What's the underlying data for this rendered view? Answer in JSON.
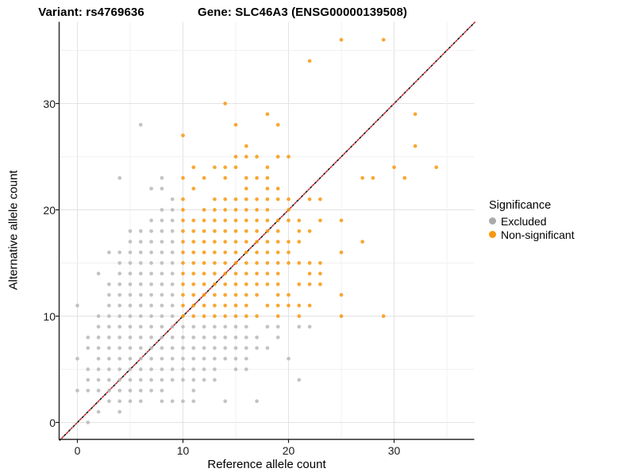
{
  "titles": {
    "left": "Variant: rs4769636",
    "right": "Gene: SLC46A3 (ENSG00000139508)"
  },
  "chart_data": {
    "type": "scatter",
    "xlabel": "Reference allele count",
    "ylabel": "Alternative allele count",
    "xlim": [
      -1.7,
      37.7
    ],
    "ylim": [
      -1.6,
      37.7
    ],
    "xticks": [
      0,
      10,
      20,
      30
    ],
    "yticks": [
      0,
      10,
      20,
      30
    ],
    "gridline_step": 5,
    "grid_major_color": "#e3e3e3",
    "grid_minor_color": "#f1f1f1",
    "axis_line_color": "#1a1a1a",
    "diagonal_line": {
      "style": "dashed",
      "equation": "y = x",
      "color_a": "#d7262e",
      "color_b": "#1c1c1c"
    },
    "point_colors": {
      "excluded": "#b9b9b9",
      "nonsig": "#f9970e"
    },
    "legend": {
      "title": "Significance",
      "items": [
        {
          "key": "excluded",
          "label": "Excluded",
          "color": "#aaaaaa"
        },
        {
          "key": "nonsig",
          "label": "Non-significant",
          "color": "#f9960f"
        }
      ],
      "position": "right"
    },
    "points_by_row": [
      {
        "y": 0,
        "excluded": [
          1
        ],
        "nonsig": []
      },
      {
        "y": 1,
        "excluded": [
          2,
          4
        ],
        "nonsig": []
      },
      {
        "y": 2,
        "excluded": [
          3,
          4,
          5,
          6,
          8,
          9,
          10,
          11,
          14,
          17
        ],
        "nonsig": []
      },
      {
        "y": 3,
        "excluded": [
          0,
          1,
          2,
          3,
          4,
          5,
          6,
          7,
          8,
          11
        ],
        "nonsig": []
      },
      {
        "y": 4,
        "excluded": [
          1,
          2,
          3,
          4,
          5,
          6,
          7,
          8,
          9,
          10,
          11,
          12,
          13,
          21
        ],
        "nonsig": []
      },
      {
        "y": 5,
        "excluded": [
          1,
          2,
          3,
          4,
          5,
          6,
          7,
          8,
          9,
          10,
          11,
          12,
          13,
          15,
          16
        ],
        "nonsig": []
      },
      {
        "y": 6,
        "excluded": [
          0,
          2,
          3,
          4,
          5,
          6,
          7,
          8,
          9,
          10,
          11,
          12,
          13,
          14,
          15,
          16,
          20
        ],
        "nonsig": []
      },
      {
        "y": 7,
        "excluded": [
          1,
          2,
          3,
          4,
          5,
          6,
          7,
          8,
          9,
          10,
          11,
          12,
          13,
          14,
          15,
          16,
          17,
          18
        ],
        "nonsig": []
      },
      {
        "y": 8,
        "excluded": [
          1,
          2,
          3,
          4,
          5,
          6,
          7,
          8,
          9,
          10,
          11,
          12,
          13,
          14,
          15,
          16,
          17,
          19
        ],
        "nonsig": []
      },
      {
        "y": 9,
        "excluded": [
          2,
          3,
          4,
          5,
          6,
          7,
          8,
          9,
          10,
          11,
          12,
          13,
          14,
          15,
          16,
          18,
          19,
          21,
          22
        ],
        "nonsig": []
      },
      {
        "y": 10,
        "excluded": [
          2,
          3,
          4,
          5,
          6,
          7,
          8,
          9
        ],
        "nonsig": [
          10,
          11,
          12,
          13,
          14,
          15,
          16,
          17,
          19,
          21,
          25,
          29
        ]
      },
      {
        "y": 11,
        "excluded": [
          0,
          3,
          4,
          5,
          6,
          7,
          8,
          9
        ],
        "nonsig": [
          10,
          11,
          12,
          13,
          14,
          15,
          16,
          18,
          19,
          20,
          21,
          22
        ]
      },
      {
        "y": 12,
        "excluded": [
          3,
          4,
          5,
          6,
          7,
          8,
          9
        ],
        "nonsig": [
          10,
          11,
          12,
          13,
          14,
          15,
          16,
          17,
          19,
          20,
          25
        ]
      },
      {
        "y": 13,
        "excluded": [
          3,
          4,
          5,
          6,
          7,
          8,
          9
        ],
        "nonsig": [
          10,
          11,
          12,
          13,
          14,
          15,
          16,
          17,
          18,
          19,
          21,
          22,
          23
        ]
      },
      {
        "y": 14,
        "excluded": [
          2,
          4,
          5,
          6,
          7,
          8,
          9
        ],
        "nonsig": [
          10,
          11,
          12,
          13,
          14,
          15,
          16,
          17,
          18,
          19,
          22,
          23
        ]
      },
      {
        "y": 15,
        "excluded": [
          4,
          5,
          6,
          7,
          8,
          9
        ],
        "nonsig": [
          10,
          11,
          12,
          13,
          14,
          15,
          16,
          17,
          18,
          19,
          20,
          21,
          22,
          23
        ]
      },
      {
        "y": 16,
        "excluded": [
          3,
          4,
          5,
          6,
          7,
          8,
          9
        ],
        "nonsig": [
          10,
          11,
          12,
          13,
          14,
          15,
          16,
          17,
          18,
          19,
          20,
          25
        ]
      },
      {
        "y": 17,
        "excluded": [
          5,
          6,
          7,
          8,
          9
        ],
        "nonsig": [
          10,
          11,
          12,
          13,
          14,
          15,
          16,
          17,
          18,
          19,
          20,
          21,
          27
        ]
      },
      {
        "y": 18,
        "excluded": [
          5,
          6,
          7,
          8,
          9
        ],
        "nonsig": [
          10,
          11,
          12,
          13,
          14,
          15,
          16,
          17,
          18,
          19,
          21,
          22
        ]
      },
      {
        "y": 19,
        "excluded": [
          7,
          8,
          9
        ],
        "nonsig": [
          10,
          11,
          12,
          13,
          14,
          15,
          16,
          17,
          18,
          19,
          20,
          21,
          23,
          25
        ]
      },
      {
        "y": 20,
        "excluded": [
          8,
          9
        ],
        "nonsig": [
          10,
          12,
          13,
          14,
          15,
          16,
          17,
          18,
          20
        ]
      },
      {
        "y": 21,
        "excluded": [
          9
        ],
        "nonsig": [
          10,
          13,
          14,
          15,
          16,
          17,
          18,
          19,
          20,
          22,
          23
        ]
      },
      {
        "y": 22,
        "excluded": [
          7,
          8
        ],
        "nonsig": [
          11,
          16,
          18,
          19
        ]
      },
      {
        "y": 23,
        "excluded": [
          4,
          8
        ],
        "nonsig": [
          10,
          12,
          14,
          16,
          17,
          18,
          27,
          28,
          31
        ]
      },
      {
        "y": 24,
        "excluded": [],
        "nonsig": [
          11,
          13,
          14,
          15,
          18,
          30,
          34
        ]
      },
      {
        "y": 25,
        "excluded": [],
        "nonsig": [
          15,
          16,
          17,
          19,
          20
        ]
      },
      {
        "y": 26,
        "excluded": [],
        "nonsig": [
          16,
          32
        ]
      },
      {
        "y": 27,
        "excluded": [],
        "nonsig": [
          10
        ]
      },
      {
        "y": 28,
        "excluded": [
          6
        ],
        "nonsig": [
          15,
          19
        ]
      },
      {
        "y": 29,
        "excluded": [],
        "nonsig": [
          18,
          32
        ]
      },
      {
        "y": 30,
        "excluded": [],
        "nonsig": [
          14
        ]
      },
      {
        "y": 34,
        "excluded": [],
        "nonsig": [
          22
        ]
      },
      {
        "y": 36,
        "excluded": [],
        "nonsig": [
          25,
          29
        ]
      }
    ]
  }
}
